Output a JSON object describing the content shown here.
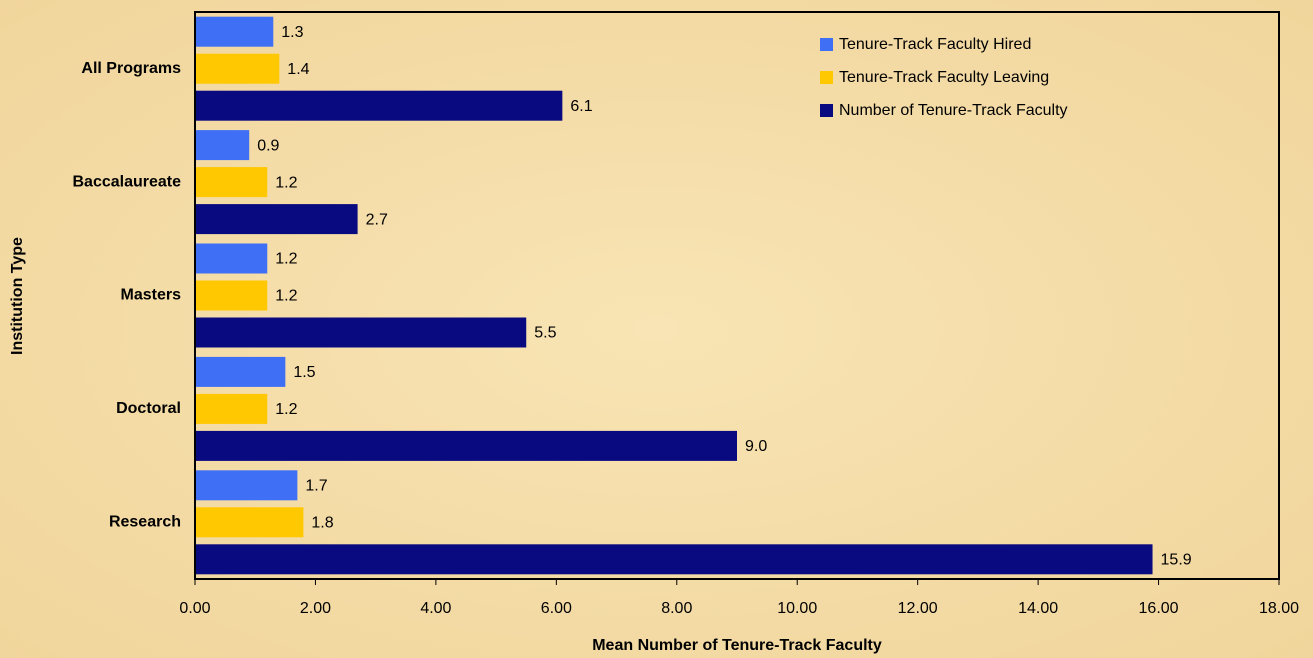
{
  "chart_data": {
    "type": "hbar",
    "x_label": "Mean Number of Tenure-Track Faculty",
    "y_label": "Institution Type",
    "categories": [
      "All Programs",
      "Baccalaureate",
      "Masters",
      "Doctoral",
      "Research"
    ],
    "series": [
      {
        "name": "Tenure-Track Faculty Hired",
        "color": "#3f6ff5",
        "values": [
          1.3,
          0.9,
          1.2,
          1.5,
          1.7
        ],
        "value_labels": [
          "1.3",
          "0.9",
          "1.2",
          "1.5",
          "1.7"
        ]
      },
      {
        "name": "Tenure-Track Faculty Leaving",
        "color": "#ffc800",
        "values": [
          1.4,
          1.2,
          1.2,
          1.2,
          1.8
        ],
        "value_labels": [
          "1.4",
          "1.2",
          "1.2",
          "1.2",
          "1.8"
        ]
      },
      {
        "name": "Number of Tenure-Track Faculty",
        "color": "#0a0a80",
        "values": [
          6.1,
          2.7,
          5.5,
          9.0,
          15.9
        ],
        "value_labels": [
          "6.1",
          "2.7",
          "5.5",
          "9.0",
          "15.9"
        ]
      }
    ],
    "xlim": [
      0,
      18
    ],
    "xticks": [
      {
        "value": 0,
        "label": "0.00"
      },
      {
        "value": 2,
        "label": "2.00"
      },
      {
        "value": 4,
        "label": "4.00"
      },
      {
        "value": 6,
        "label": "6.00"
      },
      {
        "value": 8,
        "label": "8.00"
      },
      {
        "value": 10,
        "label": "10.00"
      },
      {
        "value": 12,
        "label": "12.00"
      },
      {
        "value": 14,
        "label": "14.00"
      },
      {
        "value": 16,
        "label": "16.00"
      },
      {
        "value": 18,
        "label": "18.00"
      }
    ],
    "legend": "upper right"
  }
}
